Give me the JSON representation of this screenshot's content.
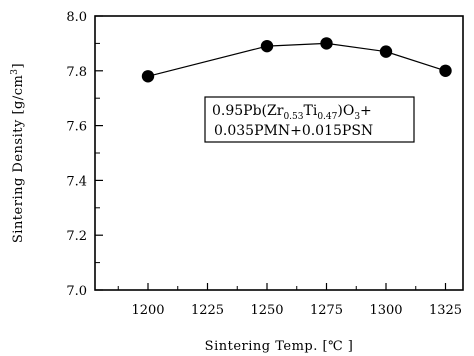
{
  "chart_data": {
    "type": "line",
    "title": "",
    "xlabel": "Sintering Temp. [℃ ]",
    "ylabel": "Sintering Density [g/cm",
    "ylabel_sup": "3",
    "ylabel_end": "]",
    "xlim": [
      1175,
      1340
    ],
    "ylim": [
      7.0,
      8.0
    ],
    "x_ticks": [
      1200,
      1225,
      1250,
      1275,
      1300,
      1325
    ],
    "x_tick_labels": [
      "1200",
      "1225",
      "1250",
      "1275",
      "1300",
      "1325"
    ],
    "y_ticks": [
      7.0,
      7.2,
      7.4,
      7.6,
      7.8,
      8.0
    ],
    "y_tick_labels": [
      "7.0",
      "7.2",
      "7.4",
      "7.6",
      "7.8",
      "8.0"
    ],
    "grid": false,
    "series": [
      {
        "x": [
          1200,
          1250,
          1275,
          1300,
          1325
        ],
        "y": [
          7.78,
          7.89,
          7.9,
          7.87,
          7.8
        ],
        "marker": "filled-circle",
        "color": "#000000"
      }
    ],
    "annotation": {
      "line1": [
        {
          "t": "0.95Pb(Zr",
          "s": "normal"
        },
        {
          "t": "0.53",
          "s": "sub"
        },
        {
          "t": "Ti",
          "s": "normal"
        },
        {
          "t": "0.47",
          "s": "sub"
        },
        {
          "t": ")O",
          "s": "normal"
        },
        {
          "t": "3",
          "s": "sub"
        },
        {
          "t": "+",
          "s": "normal"
        }
      ],
      "line2": "0.035PMN+0.015PSN"
    }
  }
}
